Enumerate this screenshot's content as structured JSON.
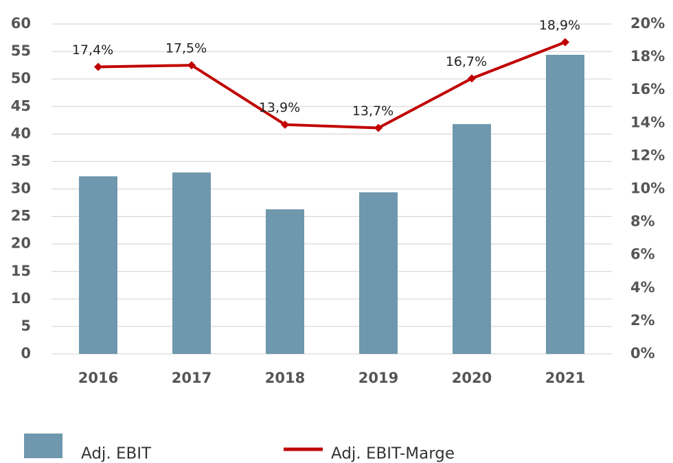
{
  "chart_data": {
    "type": "bar-line",
    "categories": [
      "2016",
      "2017",
      "2018",
      "2019",
      "2020",
      "2021"
    ],
    "series": [
      {
        "name": "Adj. EBIT",
        "type": "bar",
        "color": "#6f97ad",
        "values": [
          32.3,
          33.0,
          26.3,
          29.4,
          41.8,
          54.4
        ]
      },
      {
        "name": "Adj. EBIT-Marge",
        "type": "line",
        "axis": "y2",
        "color": "#c00000",
        "values": [
          17.4,
          17.5,
          13.9,
          13.7,
          16.7,
          18.9
        ],
        "value_labels": [
          "17,4%",
          "17,5%",
          "13,9%",
          "13,7%",
          "16,7%",
          "18,9%"
        ]
      }
    ],
    "ylim": [
      0,
      60
    ],
    "yticks": [
      0,
      5,
      10,
      15,
      20,
      25,
      30,
      35,
      40,
      45,
      50,
      55,
      60
    ],
    "y2lim": [
      0,
      20
    ],
    "y2ticks": [
      {
        "value": 0,
        "label": "0%"
      },
      {
        "value": 2,
        "label": "2%"
      },
      {
        "value": 4,
        "label": "4%"
      },
      {
        "value": 6,
        "label": "6%"
      },
      {
        "value": 8,
        "label": "8%"
      },
      {
        "value": 10,
        "label": "10%"
      },
      {
        "value": 12,
        "label": "12%"
      },
      {
        "value": 14,
        "label": "14%"
      },
      {
        "value": 16,
        "label": "16%"
      },
      {
        "value": 18,
        "label": "18%"
      },
      {
        "value": 20,
        "label": "20%"
      }
    ],
    "grid": true,
    "legend": "bottom"
  }
}
